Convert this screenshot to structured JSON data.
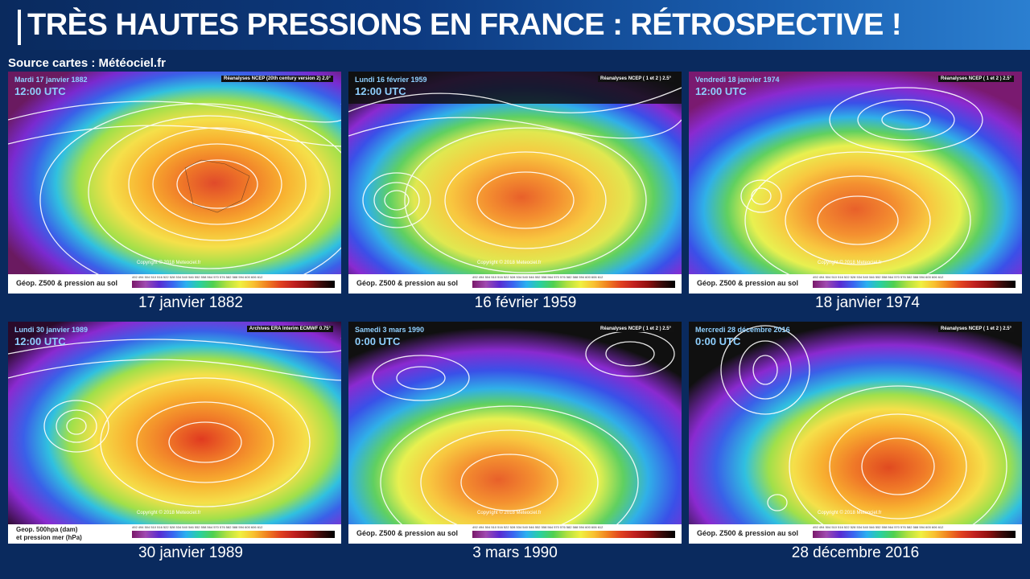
{
  "header": {
    "title": "TRÈS HAUTES PRESSIONS EN FRANCE : RÉTROSPECTIVE !"
  },
  "source": "Source cartes : Météociel.fr",
  "maps": [
    {
      "caption": "17 janvier 1882",
      "date": "Mardi 17 janvier 1882",
      "time": "12:00 UTC",
      "tr_label": "Réanalyses NCEP (20th century version 2) 2.0°",
      "legend": "Géop. Z500 & pression au sol",
      "copyright": "Copyright © 2018 Meteociel.fr"
    },
    {
      "caption": "16 février 1959",
      "date": "Lundi 16 février 1959",
      "time": "12:00 UTC",
      "tr_label": "Réanalyses NCEP ( 1 et 2 ) 2.5°",
      "legend": "Géop. Z500 & pression au sol",
      "copyright": "Copyright © 2018 Meteociel.fr"
    },
    {
      "caption": "18 janvier 1974",
      "date": "Vendredi 18 janvier 1974",
      "time": "12:00 UTC",
      "tr_label": "Réanalyses NCEP ( 1 et 2 ) 2.5°",
      "legend": "Géop. Z500 & pression au sol",
      "copyright": "Copyright © 2018 Meteociel.fr"
    },
    {
      "caption": "30 janvier 1989",
      "date": "Lundi 30 janvier 1989",
      "time": "12:00 UTC",
      "tr_label": "Archives ERA Interim ECMWF 0.75°",
      "legend": "Geop. 500hpa (dam)",
      "legend2": "et pression mer (hPa)",
      "copyright": "Copyright © 2018 Meteociel.fr"
    },
    {
      "caption": "3 mars 1990",
      "date": "Samedi 3 mars 1990",
      "time": "0:00 UTC",
      "tr_label": "Réanalyses NCEP ( 1 et 2 ) 2.5°",
      "legend": "Géop. Z500 & pression au sol",
      "copyright": "Copyright © 2018 Meteociel.fr"
    },
    {
      "caption": "28 décembre 2016",
      "date": "Mercredi 28 décembre 2016",
      "time": "0:00 UTC",
      "tr_label": "Réanalyses NCEP ( 1 et 2 ) 2.5°",
      "legend": "Géop. Z500 & pression au sol",
      "copyright": "Copyright © 2018 Meteociel.fr"
    }
  ],
  "scale_ticks": "492 494 504 510 516 522 528 534 540 546 552 558 564 570 576 582 588 594 600 606 612"
}
